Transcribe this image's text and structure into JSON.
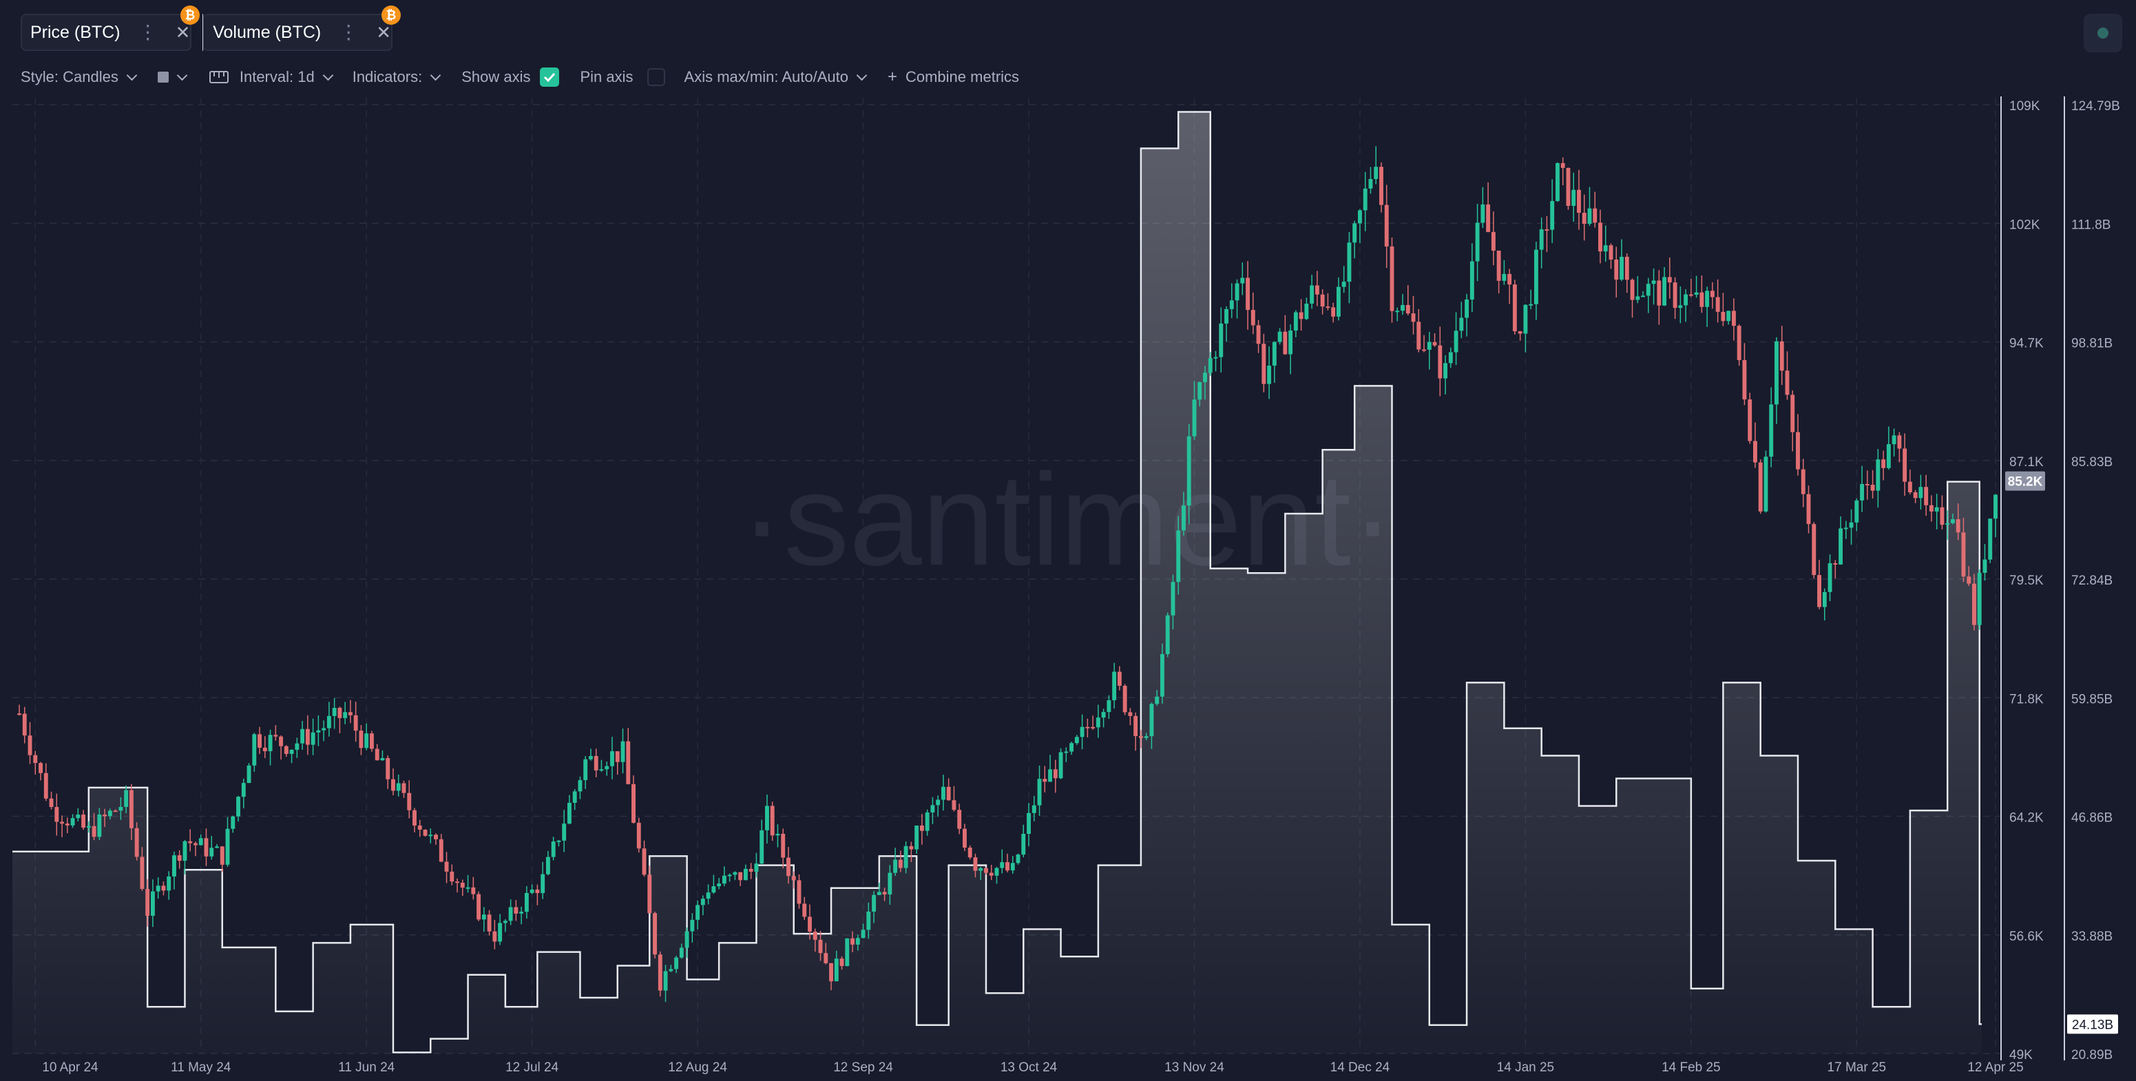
{
  "tabs": [
    {
      "label": "Price (BTC)",
      "badge": "₿"
    },
    {
      "label": "Volume (BTC)",
      "badge": "₿"
    }
  ],
  "toolbar": {
    "style_label": "Style: Candles",
    "interval_label": "Interval: 1d",
    "indicators_label": "Indicators:",
    "show_axis_label": "Show axis",
    "show_axis_checked": true,
    "pin_axis_label": "Pin axis",
    "pin_axis_checked": false,
    "axis_maxmin_label": "Axis max/min: Auto/Auto",
    "combine_label": "Combine metrics"
  },
  "colors": {
    "background": "#181b2b",
    "up_candle": "#26c29a",
    "down_candle": "#e06f73",
    "volume_line": "#e8e9ef",
    "badge": "#f7931a"
  },
  "watermark": "·santiment·",
  "chart_data": {
    "type": "candlestick+area",
    "x_range": [
      "2024-04-07",
      "2025-04-12"
    ],
    "x_ticks": [
      "10 Apr 24",
      "11 May 24",
      "11 Jun 24",
      "12 Jul 24",
      "12 Aug 24",
      "12 Sep 24",
      "13 Oct 24",
      "13 Nov 24",
      "14 Dec 24",
      "14 Jan 25",
      "14 Feb 25",
      "17 Mar 25",
      "12 Apr 25"
    ],
    "price_axis": {
      "ticks": [
        "109K",
        "102K",
        "94.7K",
        "87.1K",
        "79.5K",
        "71.8K",
        "64.2K",
        "56.6K",
        "49K"
      ],
      "min": 49000,
      "max": 109000,
      "current_label": "85.2K"
    },
    "volume_axis": {
      "ticks": [
        "124.79B",
        "111.8B",
        "98.81B",
        "85.83B",
        "72.84B",
        "59.85B",
        "46.86B",
        "33.88B",
        "20.89B"
      ],
      "min": 20.89,
      "max": 124.79,
      "current_label": "24.13B"
    },
    "price_series": {
      "name": "Price (BTC)",
      "approx_close_anchors": [
        [
          "2024-04-07",
          70500
        ],
        [
          "2024-04-13",
          64500
        ],
        [
          "2024-04-20",
          63000
        ],
        [
          "2024-04-27",
          65000
        ],
        [
          "2024-05-01",
          58000
        ],
        [
          "2024-05-08",
          62500
        ],
        [
          "2024-05-15",
          61500
        ],
        [
          "2024-05-21",
          69000
        ],
        [
          "2024-05-28",
          68500
        ],
        [
          "2024-06-07",
          70500
        ],
        [
          "2024-06-14",
          67000
        ],
        [
          "2024-06-24",
          62000
        ],
        [
          "2024-07-05",
          56500
        ],
        [
          "2024-07-14",
          60000
        ],
        [
          "2024-07-22",
          67500
        ],
        [
          "2024-07-29",
          68000
        ],
        [
          "2024-08-05",
          53500
        ],
        [
          "2024-08-14",
          59500
        ],
        [
          "2024-08-22",
          60500
        ],
        [
          "2024-08-25",
          64000
        ],
        [
          "2024-09-06",
          54000
        ],
        [
          "2024-09-15",
          59000
        ],
        [
          "2024-09-27",
          65500
        ],
        [
          "2024-10-03",
          61000
        ],
        [
          "2024-10-10",
          60500
        ],
        [
          "2024-10-15",
          66000
        ],
        [
          "2024-10-21",
          68000
        ],
        [
          "2024-10-29",
          72500
        ],
        [
          "2024-11-04",
          68500
        ],
        [
          "2024-11-08",
          76000
        ],
        [
          "2024-11-13",
          90000
        ],
        [
          "2024-11-22",
          98500
        ],
        [
          "2024-11-26",
          92000
        ],
        [
          "2024-12-05",
          97000
        ],
        [
          "2024-12-10",
          96500
        ],
        [
          "2024-12-17",
          106000
        ],
        [
          "2024-12-20",
          97000
        ],
        [
          "2024-12-30",
          92000
        ],
        [
          "2025-01-06",
          102000
        ],
        [
          "2025-01-13",
          94500
        ],
        [
          "2025-01-20",
          104500
        ],
        [
          "2025-01-27",
          101000
        ],
        [
          "2025-02-03",
          97500
        ],
        [
          "2025-02-10",
          97000
        ],
        [
          "2025-02-21",
          96000
        ],
        [
          "2025-02-24",
          91000
        ],
        [
          "2025-02-27",
          84000
        ],
        [
          "2025-03-02",
          94000
        ],
        [
          "2025-03-10",
          78000
        ],
        [
          "2025-03-17",
          84000
        ],
        [
          "2025-03-24",
          87500
        ],
        [
          "2025-03-31",
          82500
        ],
        [
          "2025-04-04",
          83500
        ],
        [
          "2025-04-08",
          76500
        ],
        [
          "2025-04-12",
          85200
        ]
      ]
    },
    "volume_series": {
      "name": "Volume (BTC)",
      "unit": "B",
      "approx_step_anchors": [
        [
          "2024-04-07",
          43.0
        ],
        [
          "2024-04-20",
          50.0
        ],
        [
          "2024-05-01",
          26.0
        ],
        [
          "2024-05-08",
          41.0
        ],
        [
          "2024-05-15",
          32.5
        ],
        [
          "2024-05-25",
          25.5
        ],
        [
          "2024-06-01",
          33.0
        ],
        [
          "2024-06-08",
          35.0
        ],
        [
          "2024-06-16",
          21.0
        ],
        [
          "2024-06-23",
          22.5
        ],
        [
          "2024-06-30",
          29.5
        ],
        [
          "2024-07-07",
          26.0
        ],
        [
          "2024-07-13",
          32.0
        ],
        [
          "2024-07-21",
          27.0
        ],
        [
          "2024-07-28",
          30.5
        ],
        [
          "2024-08-03",
          42.5
        ],
        [
          "2024-08-10",
          29.0
        ],
        [
          "2024-08-16",
          33.0
        ],
        [
          "2024-08-23",
          41.5
        ],
        [
          "2024-08-30",
          34.0
        ],
        [
          "2024-09-06",
          39.0
        ],
        [
          "2024-09-15",
          42.5
        ],
        [
          "2024-09-22",
          24.0
        ],
        [
          "2024-09-28",
          41.5
        ],
        [
          "2024-10-05",
          27.5
        ],
        [
          "2024-10-12",
          34.5
        ],
        [
          "2024-10-19",
          31.5
        ],
        [
          "2024-10-26",
          41.5
        ],
        [
          "2024-11-03",
          120.0
        ],
        [
          "2024-11-10",
          124.0
        ],
        [
          "2024-11-16",
          74.0
        ],
        [
          "2024-11-23",
          73.5
        ],
        [
          "2024-11-30",
          80.0
        ],
        [
          "2024-12-07",
          87.0
        ],
        [
          "2024-12-13",
          94.0
        ],
        [
          "2024-12-20",
          35.0
        ],
        [
          "2024-12-27",
          24.0
        ],
        [
          "2025-01-03",
          61.5
        ],
        [
          "2025-01-10",
          56.5
        ],
        [
          "2025-01-17",
          53.5
        ],
        [
          "2025-01-24",
          48.0
        ],
        [
          "2025-01-31",
          51.0
        ],
        [
          "2025-02-07",
          51.0
        ],
        [
          "2025-02-14",
          28.0
        ],
        [
          "2025-02-20",
          61.5
        ],
        [
          "2025-02-27",
          53.5
        ],
        [
          "2025-03-06",
          42.0
        ],
        [
          "2025-03-13",
          34.5
        ],
        [
          "2025-03-20",
          26.0
        ],
        [
          "2025-03-27",
          47.5
        ],
        [
          "2025-04-03",
          83.5
        ],
        [
          "2025-04-09",
          24.1
        ]
      ]
    }
  }
}
